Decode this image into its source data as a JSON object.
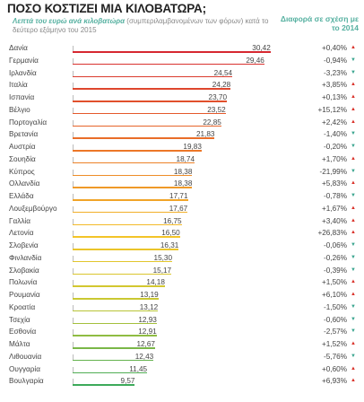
{
  "title": "ΠΟΣΟ ΚΟΣΤΙΖΕΙ ΜΙΑ ΚΙΛΟΒΑΤΩΡΑ;",
  "subtitle_bold": "Λεπτά του ευρώ ανά κιλοβατώρα",
  "subtitle_note": " (συμπεριλαμβανομένων των φόρων) κατά το δεύτερο εξάμηνο του 2015",
  "diff_header": "Διαφορά σε σχέση με το 2014",
  "colors": {
    "up": "#d9322a",
    "down": "#3aa58f",
    "accent": "#55b0a0"
  },
  "chart_data": {
    "type": "bar",
    "orientation": "horizontal",
    "title": "ΠΟΣΟ ΚΟΣΤΙΖΕΙ ΜΙΑ ΚΙΛΟΒΑΤΩΡΑ;",
    "categories": [
      "Δανία",
      "Γερμανία",
      "Ιρλανδία",
      "Ιταλία",
      "Ισπανία",
      "Βέλγιο",
      "Πορτογαλία",
      "Βρετανία",
      "Αυστρία",
      "Σουηδία",
      "Κύπρος",
      "Ολλανδία",
      "Ελλάδα",
      "Λουξεμβούργο",
      "Γαλλία",
      "Λετονία",
      "Σλοβενία",
      "Φινλανδία",
      "Σλοβακία",
      "Πολωνία",
      "Ρουμανία",
      "Κροατία",
      "Τσεχία",
      "Εσθονία",
      "Μάλτα",
      "Λιθουανία",
      "Ουγγαρία",
      "Βουλγαρία"
    ],
    "values": [
      30.42,
      29.46,
      24.54,
      24.28,
      23.7,
      23.52,
      22.85,
      21.83,
      19.83,
      18.74,
      18.38,
      18.38,
      17.71,
      17.67,
      16.75,
      16.5,
      16.31,
      15.3,
      15.17,
      14.18,
      13.19,
      13.12,
      12.93,
      12.91,
      12.67,
      12.43,
      11.45,
      9.57
    ],
    "value_labels": [
      "30,42",
      "29,46",
      "24,54",
      "24,28",
      "23,70",
      "23,52",
      "22,85",
      "21,83",
      "19,83",
      "18,74",
      "18,38",
      "18,38",
      "17,71",
      "17,67",
      "16,75",
      "16,50",
      "16,31",
      "15,30",
      "15,17",
      "14,18",
      "13,19",
      "13,12",
      "12,93",
      "12,91",
      "12,67",
      "12,43",
      "11,45",
      "9,57"
    ],
    "changes": [
      "+0,40%",
      "-0,94%",
      "-3,23%",
      "+3,85%",
      "+0,13%",
      "+15,12%",
      "+2,42%",
      "-1,40%",
      "-0,20%",
      "+1,70%",
      "-21,99%",
      "+5,83%",
      "-0,78%",
      "+1,67%",
      "+3,40%",
      "+26,83%",
      "-0,06%",
      "-0,26%",
      "-0,39%",
      "+1,50%",
      "+6,10%",
      "-1,50%",
      "-0,60%",
      "-2,57%",
      "+1,52%",
      "-5,76%",
      "+0,60%",
      "+6,93%"
    ],
    "change_direction": [
      "up",
      "down",
      "down",
      "up",
      "up",
      "up",
      "up",
      "down",
      "down",
      "up",
      "down",
      "up",
      "down",
      "up",
      "up",
      "up",
      "down",
      "down",
      "down",
      "up",
      "up",
      "down",
      "down",
      "down",
      "up",
      "down",
      "up",
      "up"
    ],
    "xlim": [
      0,
      31
    ],
    "ylabel": "",
    "xlabel": ""
  }
}
